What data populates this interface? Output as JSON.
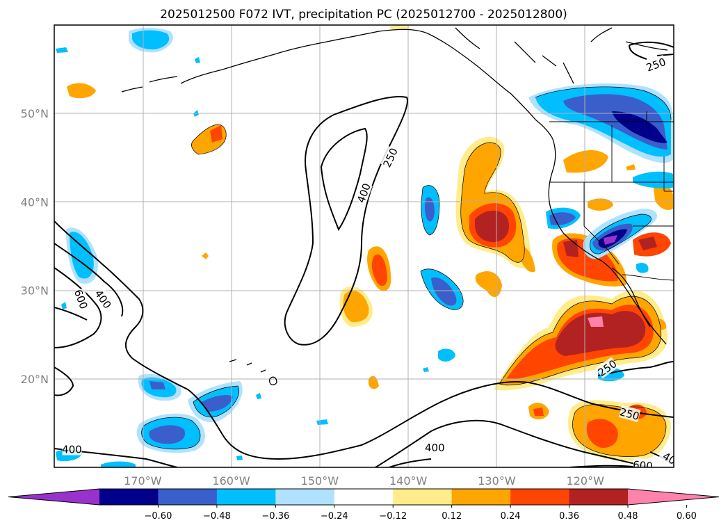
{
  "title": "2025012500 F072 IVT, precipitation PC (2025012700 - 2025012800)",
  "map": {
    "lon_range": [
      -180,
      -110
    ],
    "lat_range": [
      10,
      60
    ],
    "lon_ticks": [
      {
        "lon": -170,
        "label": "170°W"
      },
      {
        "lon": -160,
        "label": "160°W"
      },
      {
        "lon": -150,
        "label": "150°W"
      },
      {
        "lon": -140,
        "label": "140°W"
      },
      {
        "lon": -130,
        "label": "130°W"
      },
      {
        "lon": -120,
        "label": "120°W"
      }
    ],
    "lat_ticks": [
      {
        "lat": 50,
        "label": "50°N"
      },
      {
        "lat": 40,
        "label": "40°N"
      },
      {
        "lat": 30,
        "label": "30°N"
      },
      {
        "lat": 20,
        "label": "20°N"
      }
    ],
    "grid": true
  },
  "colorbar": {
    "colors": [
      "#9932cc",
      "#00008b",
      "#3a5fcd",
      "#00bfff",
      "#b0e2ff",
      "#ffffff",
      "#ffec8b",
      "#ffa500",
      "#ff4500",
      "#b22222",
      "#ff82ab"
    ],
    "ticks": [
      "−0.60",
      "−0.48",
      "−0.36",
      "−0.24",
      "−0.12",
      "0.12",
      "0.24",
      "0.36",
      "0.48",
      "0.60"
    ]
  },
  "contour_labels": [
    {
      "text": "400",
      "lon": -145,
      "lat": 41,
      "rot": -70
    },
    {
      "text": "250",
      "lon": -142,
      "lat": 45,
      "rot": -65
    },
    {
      "text": "250",
      "lon": -112,
      "lat": 55.5,
      "rot": -20
    },
    {
      "text": "600",
      "lon": -177,
      "lat": 29,
      "rot": 70
    },
    {
      "text": "400",
      "lon": -174.5,
      "lat": 29,
      "rot": 55
    },
    {
      "text": "400",
      "lon": -178,
      "lat": 12,
      "rot": 0
    },
    {
      "text": "400",
      "lon": -137,
      "lat": 12.2,
      "rot": 0
    },
    {
      "text": "250",
      "lon": -117.5,
      "lat": 21.2,
      "rot": -35
    },
    {
      "text": "250",
      "lon": -115,
      "lat": 16,
      "rot": 15
    },
    {
      "text": "600",
      "lon": -113.5,
      "lat": 10.2,
      "rot": 5
    },
    {
      "text": "40",
      "lon": -110.5,
      "lat": 11,
      "rot": 30
    }
  ]
}
